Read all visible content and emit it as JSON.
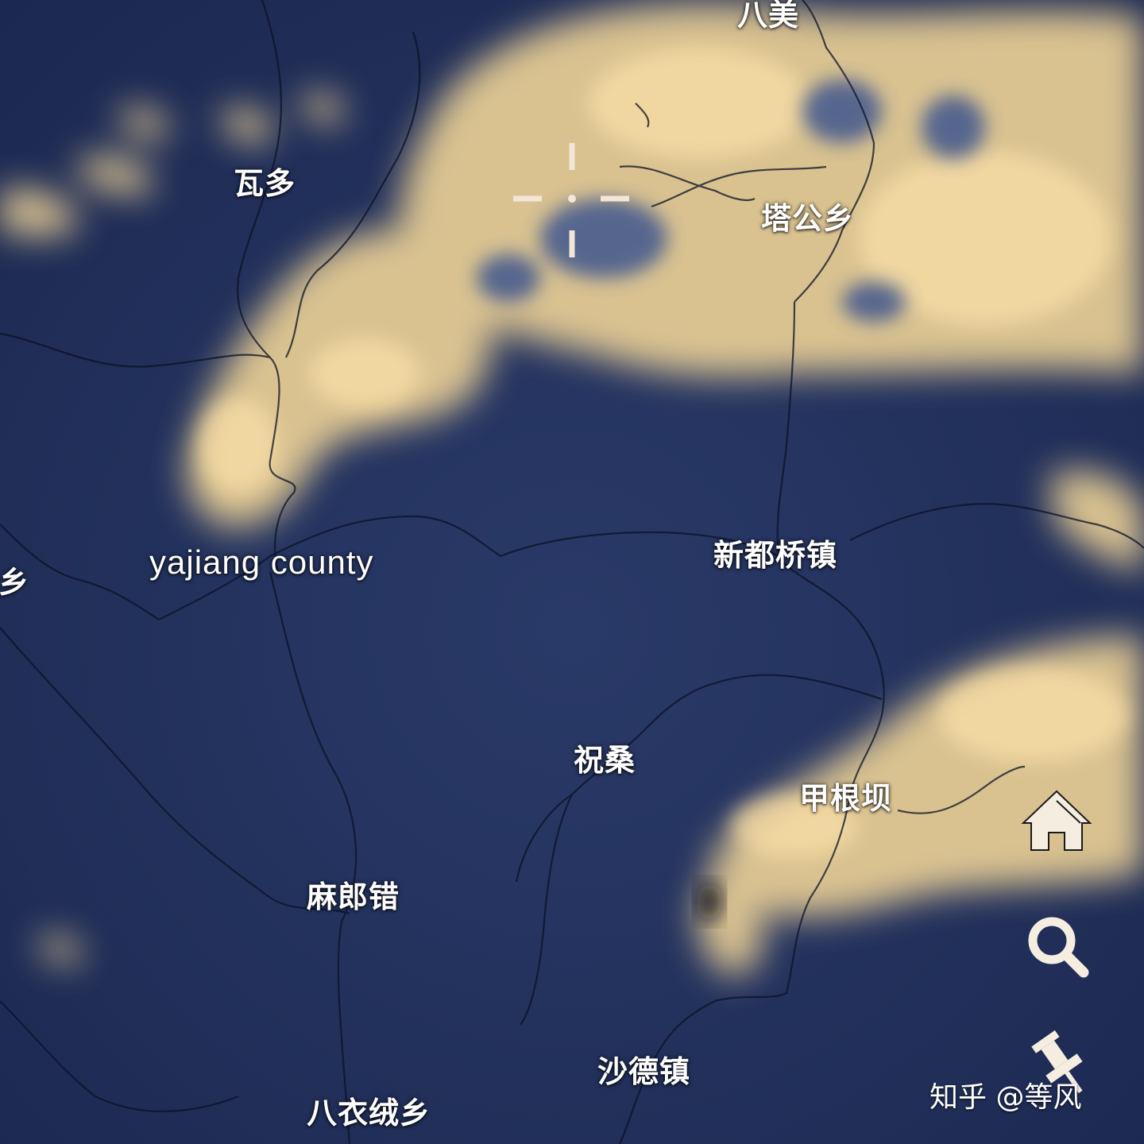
{
  "map": {
    "labels": {
      "bamei": "八美",
      "waduo": "瓦多",
      "tagongxiang": "塔公乡",
      "xiang_left": "乡",
      "yajiang": "yajiang county",
      "xinduqiao": "新都桥镇",
      "zhusang": "祝桑",
      "jiagenba": "甲根坝",
      "malangcuo": "麻郎错",
      "shadezhen": "沙德镇",
      "bayirongxiang": "八衣绒乡"
    }
  },
  "controls": {
    "home_icon": "home-icon",
    "search_icon": "search-icon",
    "pin_icon": "pushpin-icon"
  },
  "watermark": "知乎 @等风",
  "colors": {
    "sky": "#22325e",
    "cloud": "#f4d79a",
    "crosshair": "#f3e6d6",
    "road": "#0b1226",
    "icon": "#f5ede0"
  }
}
